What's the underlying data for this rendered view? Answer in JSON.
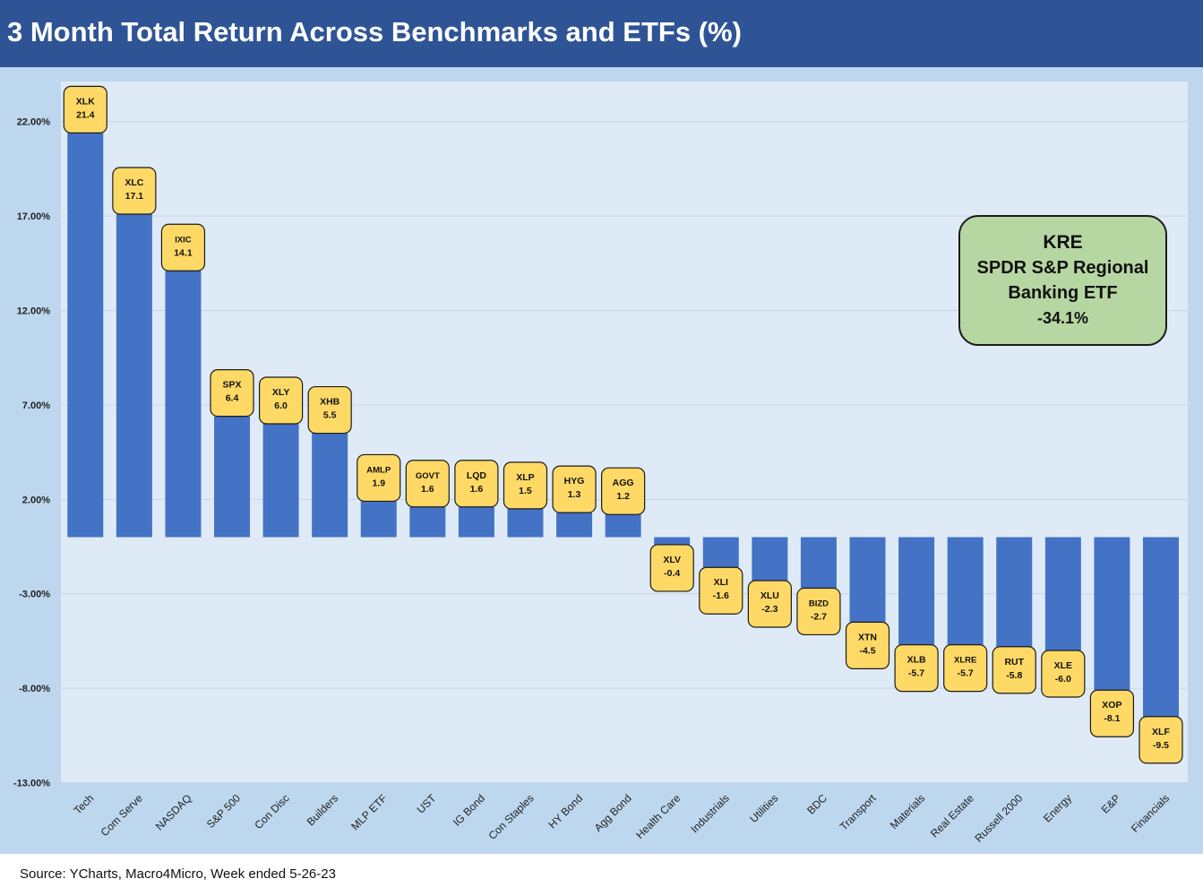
{
  "title": "3 Month Total Return Across Benchmarks and ETFs (%)",
  "source": "Source: YCharts, Macro4Micro, Week ended 5-26-23",
  "callout": {
    "ticker": "KRE",
    "name": "SPDR S&P Regional Banking ETF",
    "value": "-34.1%"
  },
  "colors": {
    "header": "#2f5496",
    "outer_background": "#bdd7ee",
    "plot_background": "#deebf7",
    "bar": "#4472c4",
    "label_box": "#ffd966",
    "callout": "#b7d7a2"
  },
  "chart_data": {
    "type": "bar",
    "categories": [
      "Tech",
      "Com Serve",
      "NASDAQ",
      "S&P 500",
      "Con Disc",
      "Builders",
      "MLP ETF",
      "UST",
      "IG Bond",
      "Con Staples",
      "HY Bond",
      "Agg Bond",
      "Health Care",
      "Industrials",
      "Utilities",
      "BDC",
      "Transport",
      "Materials",
      "Real Estate",
      "Russell 2000",
      "Energy",
      "E&P",
      "Financials"
    ],
    "tickers": [
      "XLK",
      "XLC",
      "IXIC",
      "SPX",
      "XLY",
      "XHB",
      "AMLP",
      "GOVT",
      "LQD",
      "XLP",
      "HYG",
      "AGG",
      "XLV",
      "XLI",
      "XLU",
      "BIZD",
      "XTN",
      "XLB",
      "XLRE",
      "RUT",
      "XLE",
      "XOP",
      "XLF"
    ],
    "values": [
      21.4,
      17.1,
      14.1,
      6.4,
      6.0,
      5.5,
      1.9,
      1.6,
      1.6,
      1.5,
      1.3,
      1.2,
      -0.4,
      -1.6,
      -2.3,
      -2.7,
      -4.5,
      -5.7,
      -5.7,
      -5.8,
      -6.0,
      -8.1,
      -9.5
    ],
    "value_labels": [
      "21.4",
      "17.1",
      "14.1",
      "6.4",
      "6.0",
      "5.5",
      "1.9",
      "1.6",
      "1.6",
      "1.5",
      "1.3",
      "1.2",
      "-0.4",
      "-1.6",
      "-2.3",
      "-2.7",
      "-4.5",
      "-5.7",
      "-5.7",
      "-5.8",
      "-6.0",
      "-8.1",
      "-9.5"
    ],
    "ylim": [
      -13,
      24
    ],
    "yticks": [
      22,
      17,
      12,
      7,
      2,
      -3,
      -8,
      -13
    ],
    "ytick_labels": [
      "22.00%",
      "17.00%",
      "12.00%",
      "7.00%",
      "2.00%",
      "-3.00%",
      "-8.00%",
      "-13.00%"
    ],
    "grid": true
  }
}
